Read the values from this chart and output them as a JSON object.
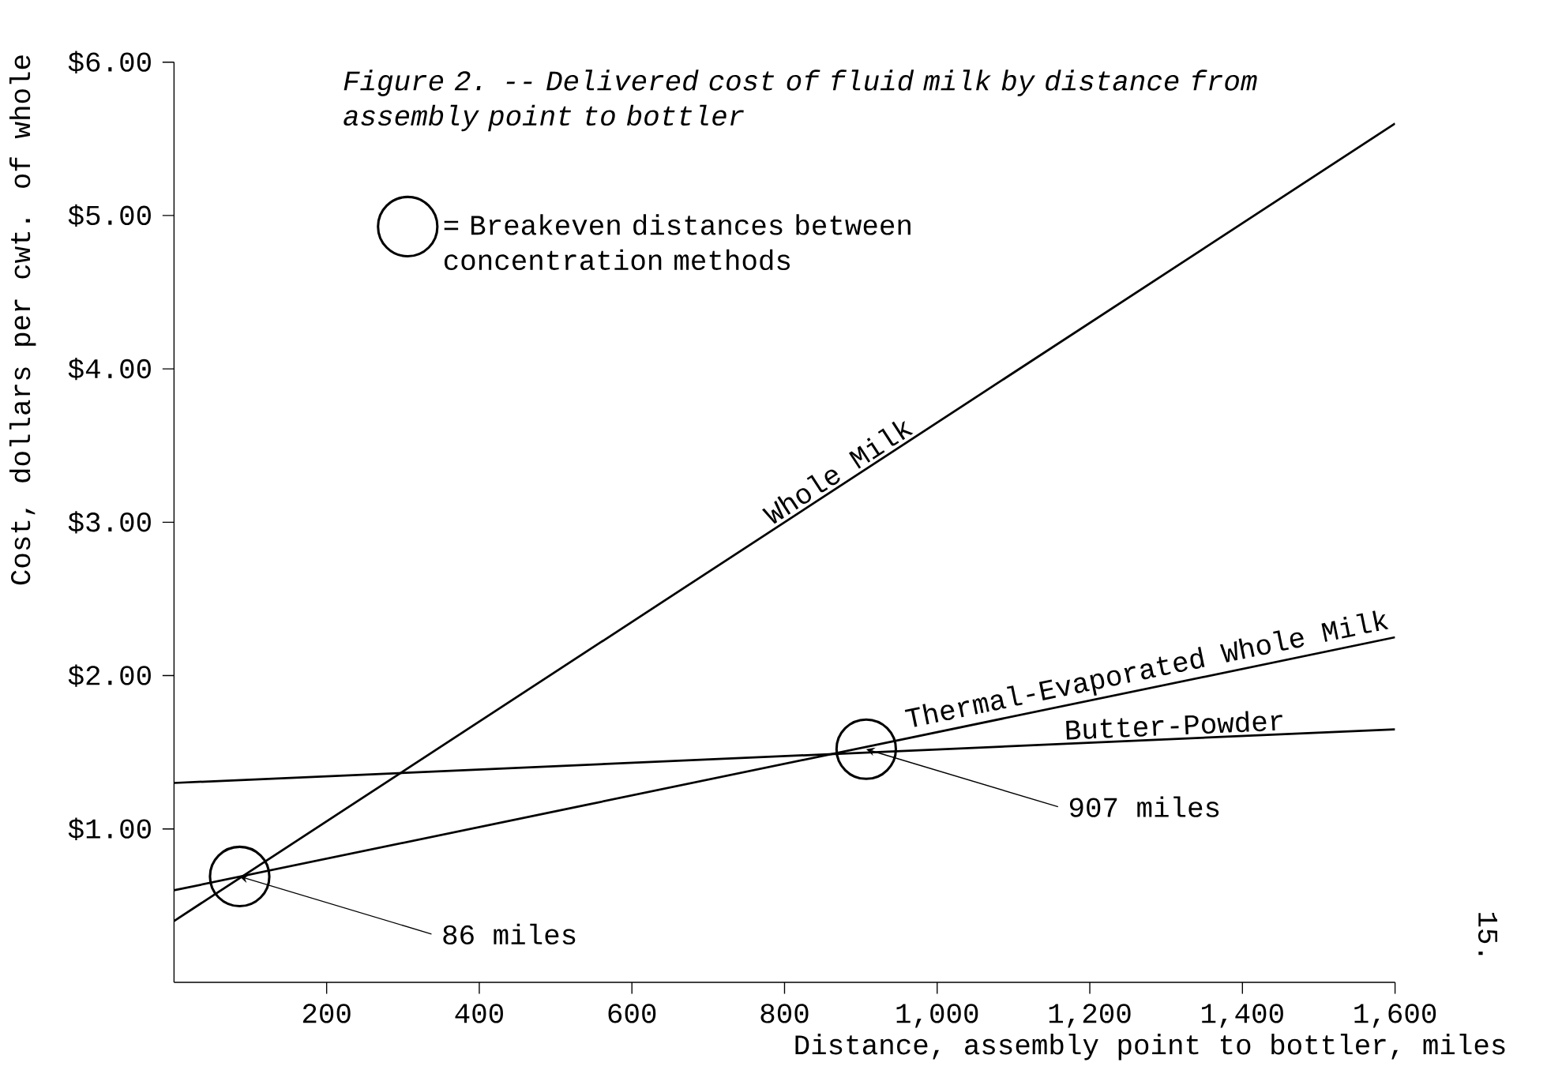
{
  "chart_data": {
    "type": "line",
    "title": "Figure 2. -- Delivered cost of fluid milk by distance from assembly point to bottler",
    "xlabel": "Distance, assembly point to bottler, miles",
    "ylabel": "Cost, dollars per cwt. of whole",
    "x": [
      0,
      1600
    ],
    "series": [
      {
        "name": "Whole Milk",
        "color": "#000000",
        "values": [
          0.4,
          5.6
        ]
      },
      {
        "name": "Thermal-Evaporated Whole Milk",
        "color": "#000000",
        "values": [
          0.6,
          2.25
        ]
      },
      {
        "name": "Butter-Powder",
        "color": "#000000",
        "values": [
          1.3,
          1.65
        ]
      },
      {
        "name": "= Breakeven distances between concentration methods",
        "type": "scatter",
        "marker": "circle",
        "color": "#000000",
        "x": [
          86,
          907
        ],
        "values": [
          0.69,
          1.52
        ]
      }
    ],
    "annotations": [
      {
        "text": "86 miles",
        "x": 86,
        "y": 0.69
      },
      {
        "text": "907 miles",
        "x": 907,
        "y": 1.52
      },
      "15."
    ],
    "xlim": [
      0,
      1600
    ],
    "ylim": [
      0,
      6
    ],
    "xticks": [
      200,
      400,
      600,
      800,
      {
        "value": 1000,
        "label": "1,000"
      },
      {
        "value": 1200,
        "label": "1,200"
      },
      {
        "value": 1400,
        "label": "1,400"
      },
      {
        "value": 1600,
        "label": "1,600"
      }
    ],
    "yticks": [
      {
        "value": 1,
        "label": "$1.00"
      },
      {
        "value": 2,
        "label": "$2.00"
      },
      {
        "value": 3,
        "label": "$3.00"
      },
      {
        "value": 4,
        "label": "$4.00"
      },
      {
        "value": 5,
        "label": "$5.00"
      },
      {
        "value": 6,
        "label": "$6.00"
      }
    ],
    "legend": "top left"
  }
}
